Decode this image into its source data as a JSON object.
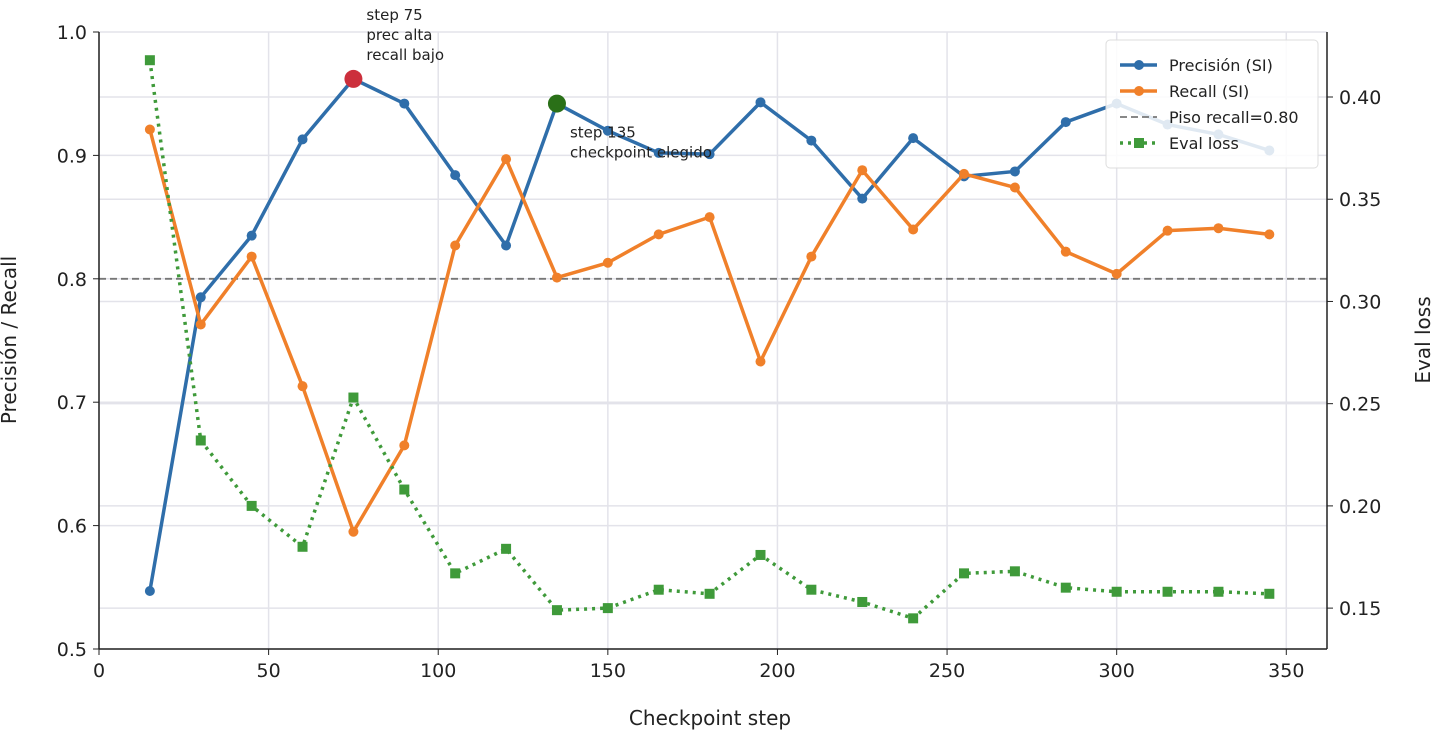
{
  "chart_data": {
    "type": "line",
    "xlabel": "Checkpoint step",
    "ylabel": "Precisión / Recall",
    "y2label": "Eval loss",
    "xlim": [
      0,
      362
    ],
    "ylim": [
      0.5,
      1.0
    ],
    "y2lim": [
      0.13,
      0.4318
    ],
    "xticks": [
      0,
      50,
      100,
      150,
      200,
      250,
      300,
      350
    ],
    "yticks": [
      0.5,
      0.6,
      0.7,
      0.8,
      0.9,
      1.0
    ],
    "ytick_labels": [
      "0.5",
      "0.6",
      "0.7",
      "0.8",
      "0.9",
      "1.0"
    ],
    "y2ticks": [
      0.15,
      0.2,
      0.25,
      0.3,
      0.35,
      0.4
    ],
    "y2tick_labels": [
      "0.15",
      "0.20",
      "0.25",
      "0.30",
      "0.35",
      "0.40"
    ],
    "grid": true,
    "legend_position": "top-right",
    "x": [
      15,
      30,
      45,
      60,
      75,
      90,
      105,
      120,
      135,
      150,
      165,
      180,
      195,
      210,
      225,
      240,
      255,
      270,
      285,
      300,
      315,
      330,
      345
    ],
    "series": [
      {
        "name": "Precisión (SI)",
        "axis": "left",
        "color": "#2f6eaa",
        "style": "solid-dot",
        "values": [
          0.547,
          0.785,
          0.835,
          0.913,
          0.962,
          0.942,
          0.884,
          0.827,
          0.942,
          0.92,
          0.902,
          0.901,
          0.943,
          0.912,
          0.865,
          0.914,
          0.883,
          0.887,
          0.927,
          0.942,
          0.925,
          0.917,
          0.904
        ]
      },
      {
        "name": "Recall (SI)",
        "axis": "left",
        "color": "#f0802a",
        "style": "solid-dot",
        "values": [
          0.921,
          0.763,
          0.818,
          0.713,
          0.595,
          0.665,
          0.827,
          0.897,
          0.801,
          0.813,
          0.836,
          0.85,
          0.733,
          0.818,
          0.888,
          0.84,
          0.885,
          0.874,
          0.822,
          0.804,
          0.839,
          0.841,
          0.836
        ]
      },
      {
        "name": "Eval loss",
        "axis": "right",
        "color": "#3f9a3a",
        "style": "dotted-square",
        "values": [
          0.418,
          0.232,
          0.2,
          0.18,
          0.253,
          0.208,
          0.167,
          0.179,
          0.149,
          0.15,
          0.159,
          0.157,
          0.176,
          0.159,
          0.153,
          0.145,
          0.167,
          0.168,
          0.16,
          0.158,
          0.158,
          0.158,
          0.157
        ]
      }
    ],
    "hline": {
      "name": "Piso recall=0.80",
      "value": 0.8,
      "color": "#777777"
    },
    "annotations": [
      {
        "x": 75,
        "y": 0.962,
        "color": "#cc2f3c",
        "lines": [
          "step 75",
          "prec alta",
          "recall bajo"
        ]
      },
      {
        "x": 135,
        "y": 0.942,
        "color": "#2a7018",
        "lines": [
          "step 135",
          "checkpoint elegido"
        ]
      }
    ]
  }
}
